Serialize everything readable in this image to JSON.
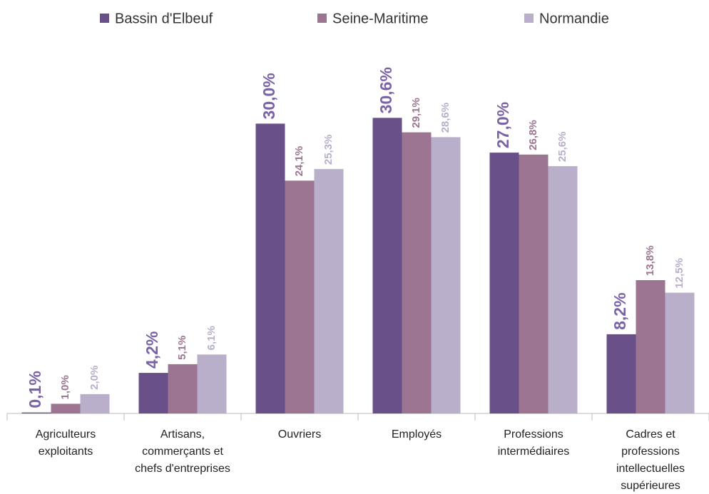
{
  "chart_data": {
    "type": "bar",
    "categories": [
      "Agriculteurs exploitants",
      "Artisans, commerçants et chefs d'entreprises",
      "Ouvriers",
      "Employés",
      "Professions intermédiaires",
      "Cadres et professions intellectuelles supérieures"
    ],
    "series": [
      {
        "name": "Bassin d'Elbeuf",
        "color": "#6a5088",
        "label_color": "#7a62a6",
        "values": [
          0.1,
          4.2,
          30.0,
          30.6,
          27.0,
          8.2
        ],
        "value_labels": [
          "0,1%",
          "4,2%",
          "30,0%",
          "30,6%",
          "27,0%",
          "8,2%"
        ]
      },
      {
        "name": "Seine-Maritime",
        "color": "#9b7591",
        "label_color": "#9b7591",
        "values": [
          1.0,
          5.1,
          24.1,
          29.1,
          26.8,
          13.8
        ],
        "value_labels": [
          "1,0%",
          "5,1%",
          "24,1%",
          "29,1%",
          "26,8%",
          "13,8%"
        ]
      },
      {
        "name": "Normandie",
        "color": "#b9afcb",
        "label_color": "#b9afcb",
        "values": [
          2.0,
          6.1,
          25.3,
          28.6,
          25.6,
          12.5
        ],
        "value_labels": [
          "2,0%",
          "6,1%",
          "25,3%",
          "28,6%",
          "25,6%",
          "12,5%"
        ]
      }
    ],
    "ylim": [
      0,
      42.8
    ],
    "legend": "top"
  }
}
